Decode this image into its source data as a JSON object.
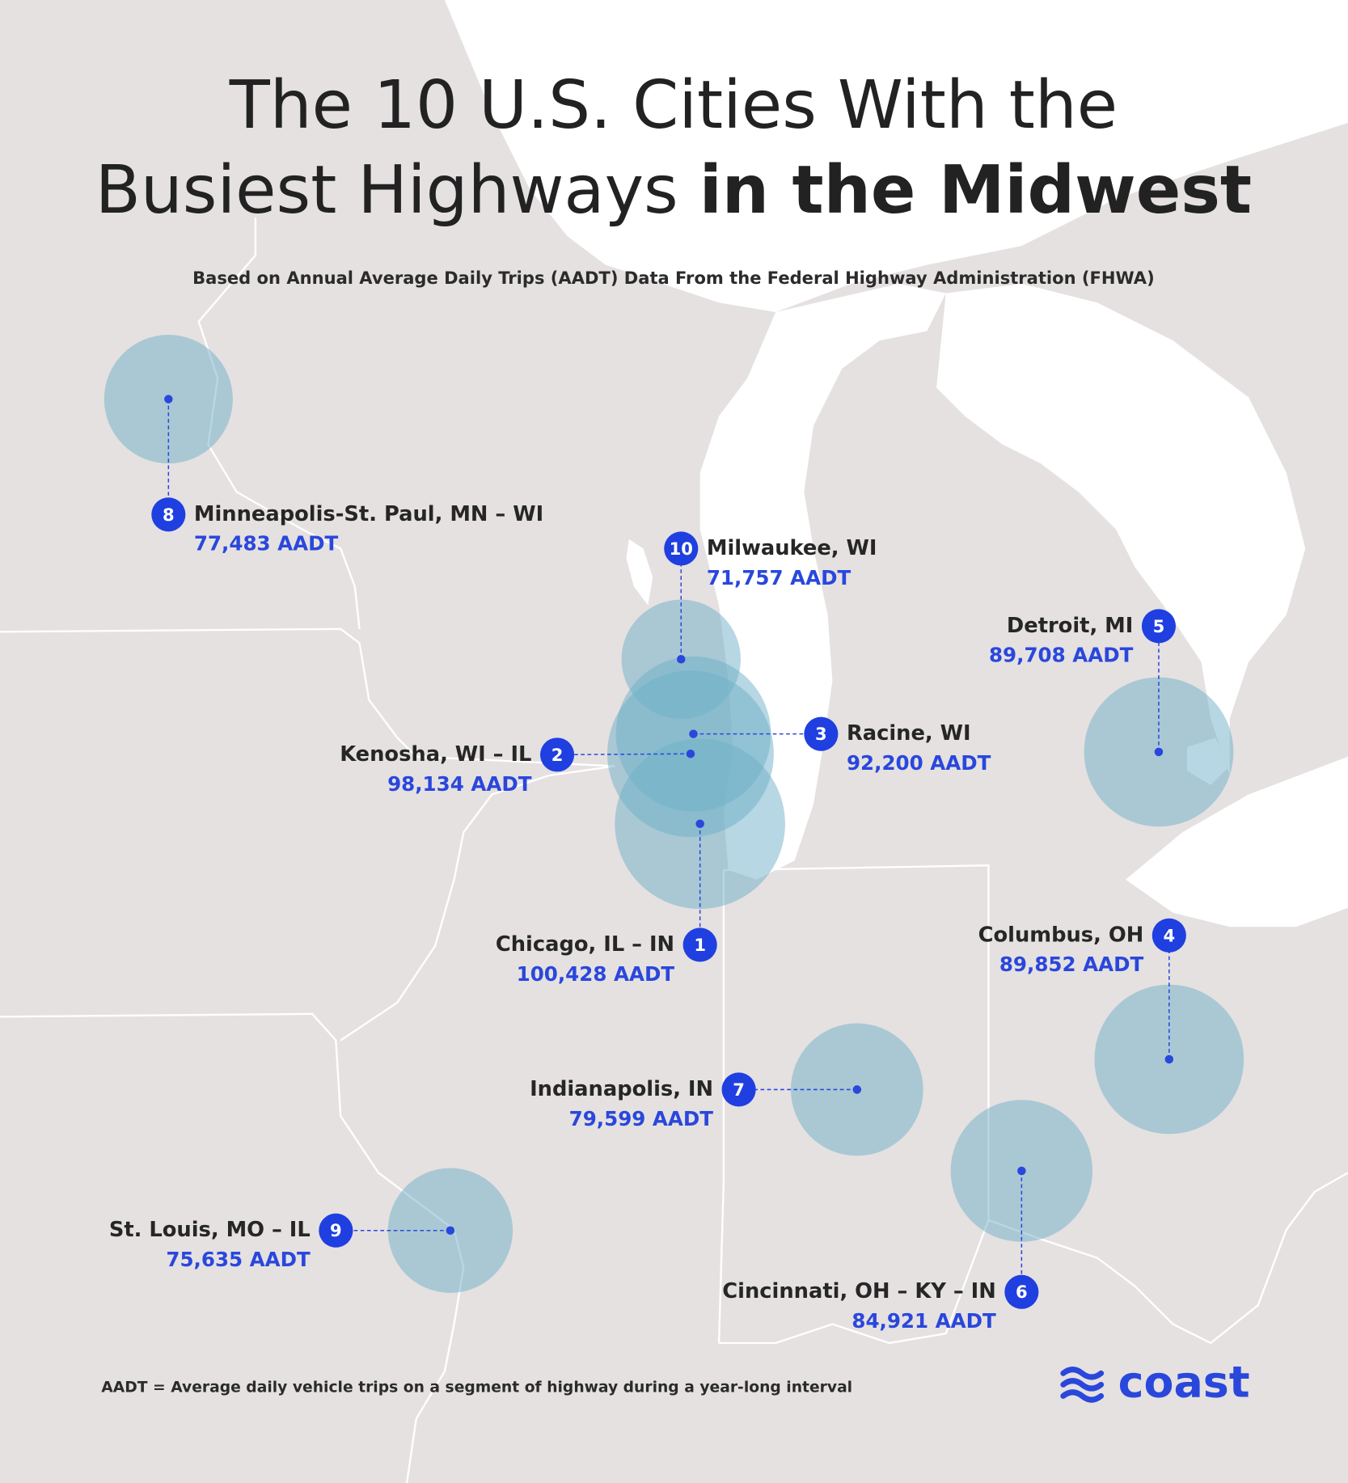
{
  "title": {
    "line1": "The 10 U.S. Cities With the",
    "line2_regular": "Busiest Highways",
    "line2_bold": "in the Midwest"
  },
  "subtitle": "Based on Annual Average Daily Trips (AADT) Data From the Federal Highway Administration (FHWA)",
  "cities": [
    {
      "rank": "1",
      "name": "Chicago, IL – IN",
      "aadt": "100,428 AADT"
    },
    {
      "rank": "2",
      "name": "Kenosha, WI – IL",
      "aadt": "98,134 AADT"
    },
    {
      "rank": "3",
      "name": "Racine, WI",
      "aadt": "92,200 AADT"
    },
    {
      "rank": "4",
      "name": "Columbus, OH",
      "aadt": "89,852 AADT"
    },
    {
      "rank": "5",
      "name": "Detroit, MI",
      "aadt": "89,708 AADT"
    },
    {
      "rank": "6",
      "name": "Cincinnati, OH – KY – IN",
      "aadt": "84,921 AADT"
    },
    {
      "rank": "7",
      "name": "Indianapolis, IN",
      "aadt": "79,599 AADT"
    },
    {
      "rank": "8",
      "name": "Minneapolis-St. Paul, MN – WI",
      "aadt": "77,483 AADT"
    },
    {
      "rank": "9",
      "name": "St. Louis, MO – IL",
      "aadt": "75,635 AADT"
    },
    {
      "rank": "10",
      "name": "Milwaukee, WI",
      "aadt": "71,757 AADT"
    }
  ],
  "footnote": "AADT = Average daily vehicle trips on a segment of highway during a year-long interval",
  "logo": "coast"
}
